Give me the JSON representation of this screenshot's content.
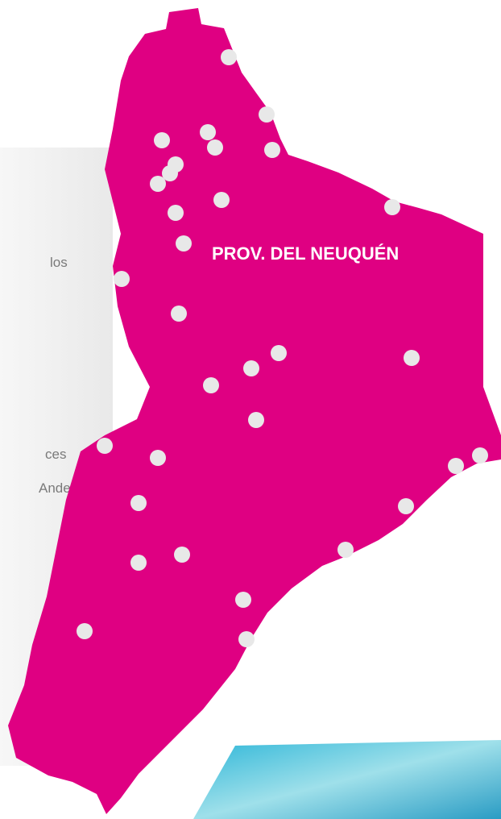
{
  "map": {
    "region_label": "PROV. DEL NEUQUÉN",
    "side_text": [
      "los",
      "ces",
      "Andes"
    ]
  }
}
